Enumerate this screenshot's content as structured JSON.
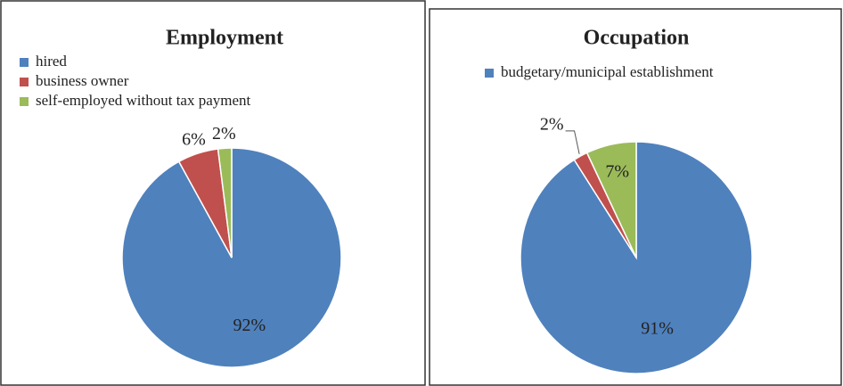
{
  "chart_data": [
    {
      "type": "pie",
      "title": "Employment",
      "categories": [
        "hired",
        "business owner",
        "self-employed without tax payment"
      ],
      "values": [
        92,
        6,
        2
      ],
      "value_labels": [
        "92%",
        "6%",
        "2%"
      ],
      "colors": [
        "#4f81bd",
        "#c0504d",
        "#9bbb59"
      ]
    },
    {
      "type": "pie",
      "title": "Occupation",
      "categories": [
        "budgetary/municipal establishment",
        null,
        null
      ],
      "values": [
        91,
        2,
        7
      ],
      "value_labels": [
        "91%",
        "2%",
        "7%"
      ],
      "colors": [
        "#4f81bd",
        "#c0504d",
        "#9bbb59"
      ]
    }
  ]
}
